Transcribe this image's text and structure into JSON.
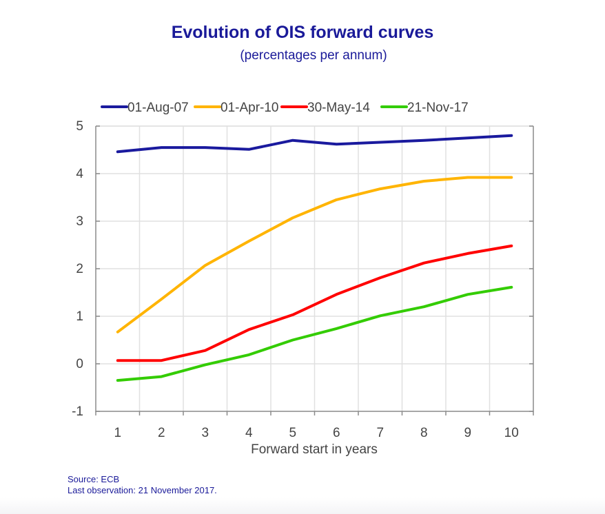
{
  "chart_data": {
    "type": "line",
    "title": "Evolution of OIS forward curves",
    "subtitle": "(percentages per annum)",
    "xlabel": "Forward start in years",
    "ylabel": "",
    "categories": [
      "1",
      "2",
      "3",
      "4",
      "5",
      "6",
      "7",
      "8",
      "9",
      "10"
    ],
    "ylim": [
      -1,
      5
    ],
    "yticks": [
      "-1",
      "0",
      "1",
      "2",
      "3",
      "4",
      "5"
    ],
    "ytick_values": [
      -1,
      0,
      1,
      2,
      3,
      4,
      5
    ],
    "grid": true,
    "legend_position": "top",
    "series": [
      {
        "name": "01-Aug-07",
        "color": "#1a1a9e",
        "values": [
          4.46,
          4.55,
          4.55,
          4.51,
          4.7,
          4.62,
          4.66,
          4.7,
          4.75,
          4.8
        ]
      },
      {
        "name": "01-Apr-10",
        "color": "#ffb400",
        "values": [
          0.67,
          1.36,
          2.07,
          2.58,
          3.07,
          3.45,
          3.68,
          3.84,
          3.92,
          3.92
        ]
      },
      {
        "name": "30-May-14",
        "color": "#ff0000",
        "values": [
          0.07,
          0.07,
          0.28,
          0.72,
          1.03,
          1.46,
          1.81,
          2.12,
          2.32,
          2.48
        ]
      },
      {
        "name": "21-Nov-17",
        "color": "#33cc00",
        "values": [
          -0.35,
          -0.27,
          -0.02,
          0.19,
          0.5,
          0.74,
          1.01,
          1.2,
          1.46,
          1.61
        ]
      }
    ]
  },
  "footer": {
    "source": "Source: ECB",
    "last_observation": "Last observation: 21 November 2017."
  }
}
